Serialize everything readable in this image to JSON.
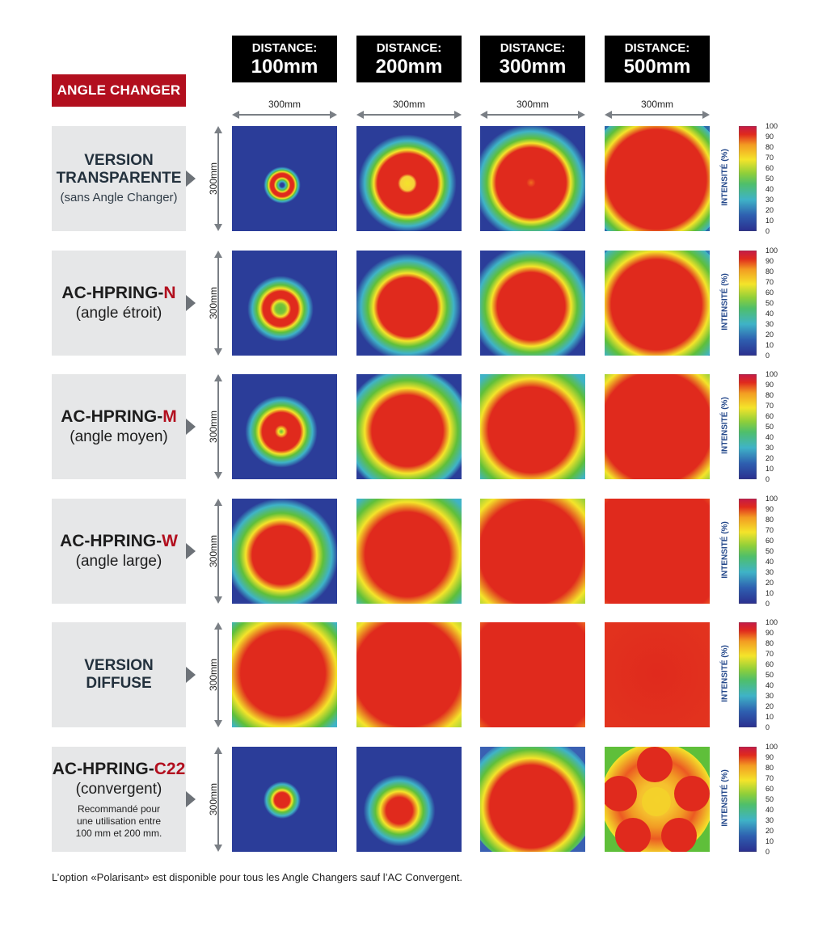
{
  "badge": "ANGLE CHANGER",
  "distance_label": "DISTANCE:",
  "distances": [
    "100mm",
    "200mm",
    "300mm",
    "500mm"
  ],
  "width_label": "300mm",
  "height_label": "300mm",
  "intensity_axis": {
    "label": "INTENSITÉ (%)",
    "ticks": [
      "100",
      "90",
      "80",
      "70",
      "60",
      "50",
      "40",
      "30",
      "20",
      "10",
      "0"
    ]
  },
  "rows": [
    {
      "title_a": "VERSION",
      "title_b": "TRANSPARENTE",
      "subtitle": "(sans Angle Changer)"
    },
    {
      "model_prefix": "AC-HPRING-",
      "model_suffix": "N",
      "subtitle": "(angle étroit)"
    },
    {
      "model_prefix": "AC-HPRING-",
      "model_suffix": "M",
      "subtitle": "(angle moyen)"
    },
    {
      "model_prefix": "AC-HPRING-",
      "model_suffix": "W",
      "subtitle": "(angle large)"
    },
    {
      "title_a": "VERSION",
      "title_b": "DIFFUSE"
    },
    {
      "model_prefix": "AC-HPRING-",
      "model_suffix": "C22",
      "subtitle": "(convergent)",
      "note_a": "Recommandé pour",
      "note_b": "une utilisation entre",
      "note_c": "100 mm et 200 mm."
    }
  ],
  "footnote": "L’option «Polarisant» est disponible pour tous les Angle Changers sauf l’AC Convergent.",
  "colors": {
    "accent": "#b20f1e",
    "heat_background": "#2b3d99",
    "heat_red": "#e02a1d",
    "heat_yellow": "#f4e42a",
    "heat_green": "#5fbf3a",
    "heat_cyan": "#3fb3c7"
  }
}
